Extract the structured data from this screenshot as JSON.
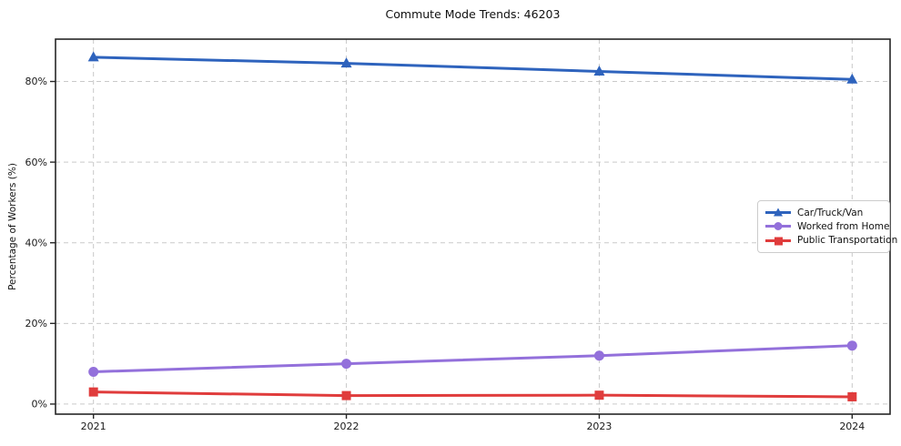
{
  "figure": {
    "title": "Commute Mode Trends: 46203"
  },
  "chart_data": {
    "type": "line",
    "title": "Commute Mode Trends: 46203",
    "xlabel": "",
    "ylabel": "Percentage of Workers (%)",
    "x": [
      2021,
      2022,
      2023,
      2024
    ],
    "xticklabels": [
      "2021",
      "2022",
      "2023",
      "2024"
    ],
    "series": [
      {
        "name": "Car/Truck/Van",
        "marker": "triangle",
        "color": "#2e63bd",
        "values": [
          86.0,
          84.5,
          82.5,
          80.5
        ]
      },
      {
        "name": "Worked from Home",
        "marker": "circle",
        "color": "#9370DB",
        "values": [
          8.0,
          10.0,
          12.0,
          14.5
        ]
      },
      {
        "name": "Public Transportation",
        "marker": "square",
        "color": "#e03c3c",
        "values": [
          3.0,
          2.1,
          2.2,
          1.8
        ]
      }
    ],
    "xlim": [
      2020.85,
      2024.15
    ],
    "ylim": [
      -2.5,
      90.5
    ],
    "yticks": [
      0,
      20,
      40,
      60,
      80
    ],
    "yticklabels": [
      "0%",
      "20%",
      "40%",
      "60%",
      "80%"
    ],
    "grid": true,
    "grid_style": "dashed",
    "legend_position": "center right",
    "colors": {
      "grid": "#c9c9c9",
      "spine": "#262626",
      "tick_label": "#1a1a1a",
      "legend_border": "#cccccc"
    }
  }
}
